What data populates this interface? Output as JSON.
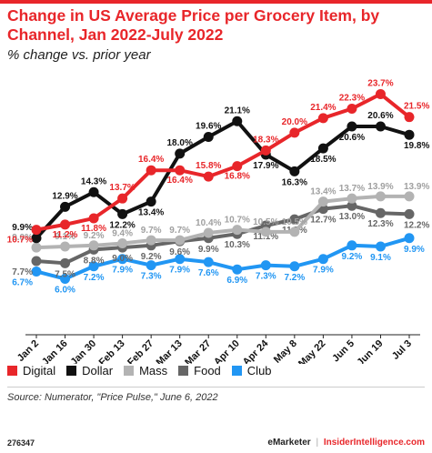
{
  "header": {
    "title": "Change in US Average Price per Grocery Item, by Channel, Jan 2022-July 2022",
    "subtitle": "% change vs. prior year"
  },
  "chart_data": {
    "type": "line",
    "categories": [
      "Jan 2",
      "Jan 16",
      "Jan 30",
      "Feb 13",
      "Feb 27",
      "Mar 13",
      "Mar 27",
      "Apr 10",
      "Apr 24",
      "May 8",
      "May 22",
      "Jun 5",
      "Jun 19",
      "Jul 3"
    ],
    "ylim": [
      5,
      24
    ],
    "grid": false,
    "legend_position": "bottom",
    "series": [
      {
        "name": "Digital",
        "color": "#e8262a",
        "values": [
          10.7,
          11.2,
          11.8,
          13.7,
          16.4,
          16.4,
          15.8,
          16.8,
          18.3,
          20.0,
          21.4,
          22.3,
          23.7,
          21.5
        ],
        "labels": [
          "10.7%",
          "11.2%",
          "11.8%",
          "13.7%",
          "16.4%",
          "16.4%",
          "15.8%",
          "16.8%",
          "18.3%",
          "20.0%",
          "21.4%",
          "22.3%",
          "23.7%",
          "21.5%"
        ]
      },
      {
        "name": "Dollar",
        "color": "#111111",
        "values": [
          9.9,
          12.9,
          14.3,
          12.2,
          13.4,
          18.0,
          19.6,
          21.1,
          17.9,
          16.3,
          18.5,
          20.6,
          20.6,
          19.8
        ],
        "labels": [
          "9.9%",
          "12.9%",
          "14.3%",
          "12.2%",
          "13.4%",
          "18.0%",
          "19.6%",
          "21.1%",
          "17.9%",
          "16.3%",
          "18.5%",
          "20.6%",
          "20.6%",
          "19.8%"
        ]
      },
      {
        "name": "Mass",
        "color": "#b3b3b3",
        "values": [
          9.0,
          9.1,
          9.2,
          9.4,
          9.7,
          9.7,
          10.4,
          10.7,
          10.5,
          10.5,
          13.4,
          13.7,
          13.9,
          13.9
        ],
        "labels": [
          "9.0%",
          "9.1%",
          "9.2%",
          "9.4%",
          "9.7%",
          "9.7%",
          "10.4%",
          "10.7%",
          "10.5%",
          "10.5%",
          "13.4%",
          "13.7%",
          "13.9%",
          "13.9%"
        ]
      },
      {
        "name": "Food",
        "color": "#666666",
        "values": [
          7.7,
          7.5,
          8.8,
          9.0,
          9.2,
          9.6,
          9.9,
          10.3,
          11.1,
          11.7,
          12.7,
          13.0,
          12.3,
          12.2
        ],
        "labels": [
          "7.7%",
          "7.5%",
          "8.8%",
          "9.0%",
          "9.2%",
          "9.6%",
          "9.9%",
          "10.3%",
          "11.1%",
          "11.7%",
          "12.7%",
          "13.0%",
          "12.3%",
          "12.2%"
        ]
      },
      {
        "name": "Club",
        "color": "#2196f3",
        "values": [
          6.7,
          6.0,
          7.2,
          7.9,
          7.3,
          7.9,
          7.6,
          6.9,
          7.3,
          7.2,
          7.9,
          9.2,
          9.1,
          9.9
        ],
        "labels": [
          "6.7%",
          "6.0%",
          "7.2%",
          "7.9%",
          "7.3%",
          "7.9%",
          "7.6%",
          "6.9%",
          "7.3%",
          "7.2%",
          "7.9%",
          "9.2%",
          "9.1%",
          "9.9%"
        ]
      }
    ]
  },
  "source": "Source: Numerator, \"Price Pulse,\" June 6, 2022",
  "footer": {
    "chart_id": "276347",
    "brand": "eMarketer",
    "separator": "|",
    "site": "InsiderIntelligence.com"
  }
}
